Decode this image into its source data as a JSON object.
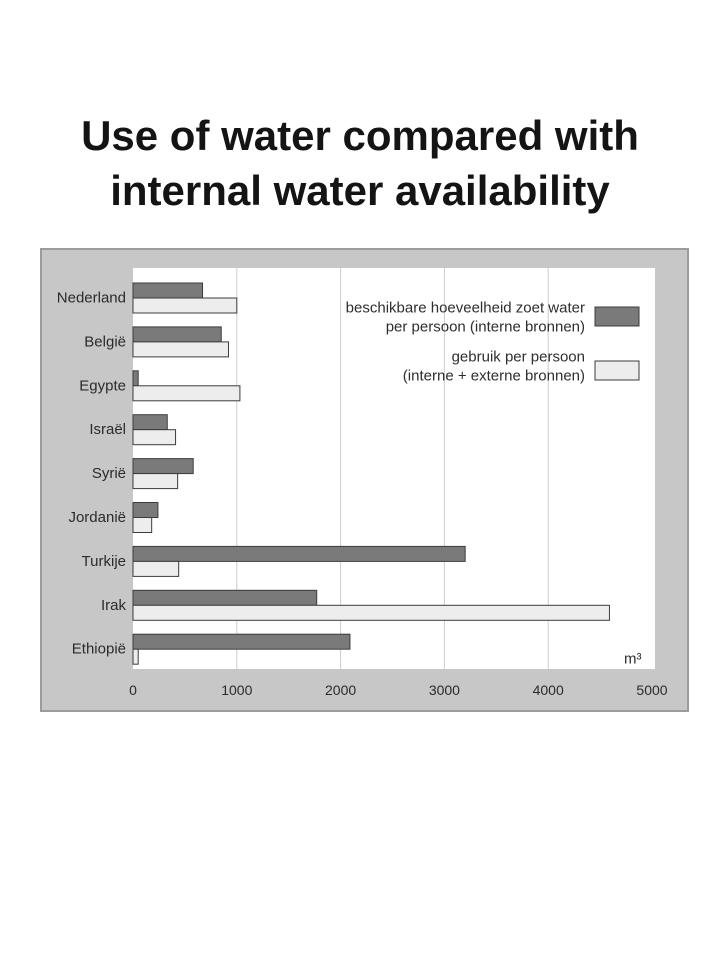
{
  "slide": {
    "title_lines": [
      "Use of water compared with",
      "internal water availability"
    ]
  },
  "chart_data": {
    "type": "bar",
    "orientation": "horizontal",
    "categories": [
      "Nederland",
      "België",
      "Egypte",
      "Israël",
      "Syrië",
      "Jordanië",
      "Turkije",
      "Irak",
      "Ethiopië"
    ],
    "series": [
      {
        "name_lines": [
          "beschikbare hoeveelheid zoet water",
          "per persoon (interne bronnen)"
        ],
        "color": "#7a7a7a",
        "values": [
          670,
          850,
          50,
          330,
          580,
          240,
          3200,
          1770,
          2090
        ]
      },
      {
        "name_lines": [
          "gebruik per persoon",
          "(interne + externe bronnen)"
        ],
        "color": "#ededed",
        "values": [
          1000,
          920,
          1030,
          410,
          430,
          180,
          440,
          4590,
          50
        ]
      }
    ],
    "xlabel": "m³",
    "xlim": [
      0,
      5000
    ],
    "xticks": [
      0,
      1000,
      2000,
      3000,
      4000,
      5000
    ],
    "grid": true,
    "legend": "top-right"
  }
}
